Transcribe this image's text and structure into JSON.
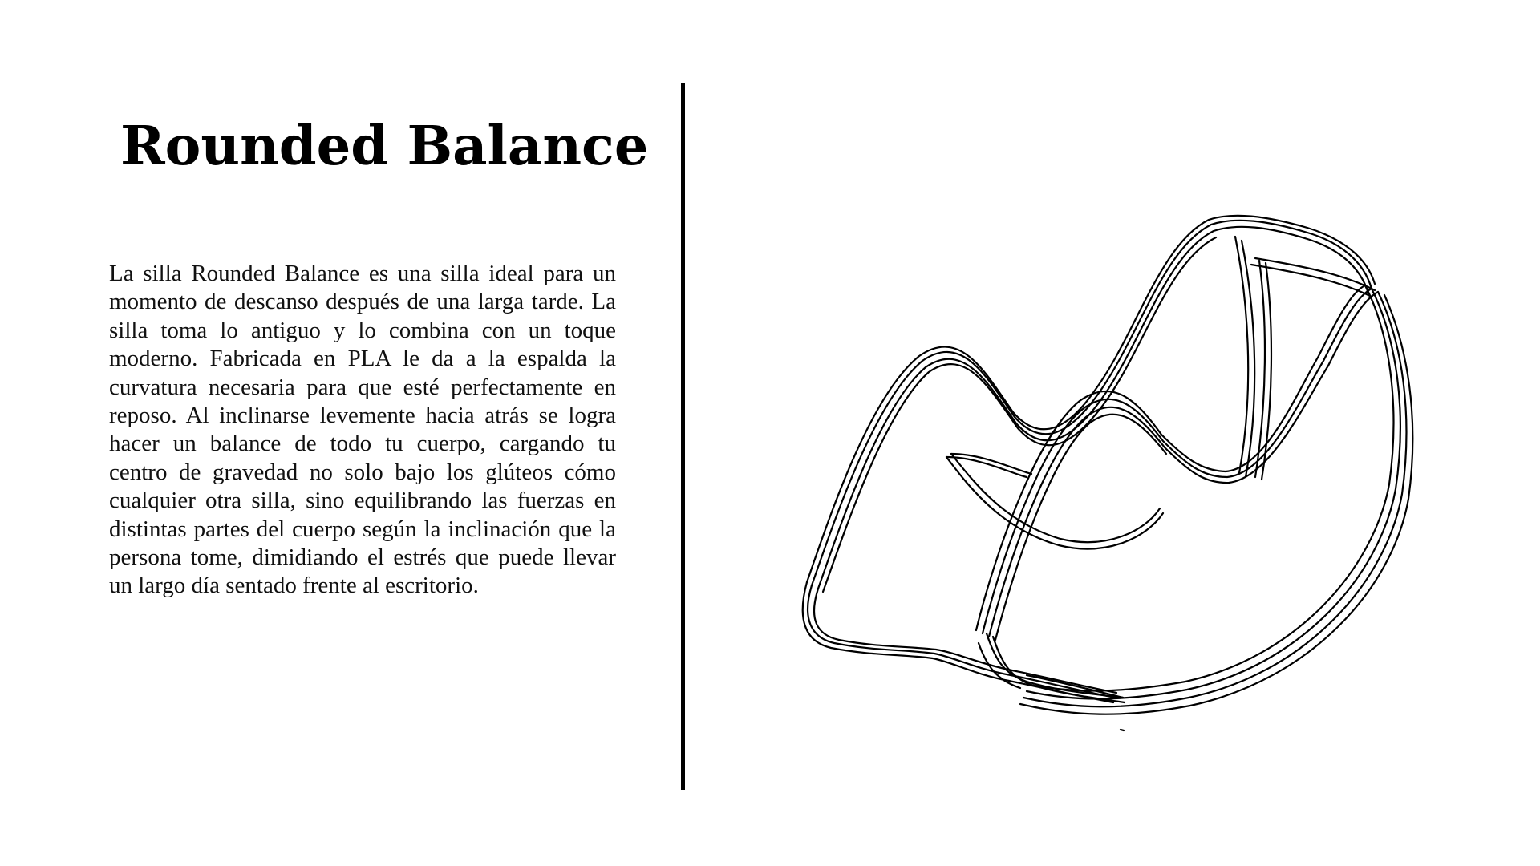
{
  "slide": {
    "title": "Rounded Balance",
    "description": "La silla Rounded Balance es una silla ideal para un momento de descanso después de una larga tarde. La silla toma lo antiguo y lo combina con un toque moderno. Fabricada en PLA le da a la espalda la curvatura necesaria para que esté perfectamente en reposo. Al inclinarse levemente hacia atrás se logra hacer un balance de todo tu cuerpo, cargando tu centro de gravedad no solo bajo los glúteos cómo cualquier otra silla, sino equilibrando las fuerzas en distintas partes del cuerpo según la inclinación que la persona tome, dimidiando el estrés que puede llevar un largo día sentado frente al escritorio."
  },
  "colors": {
    "background": "#ffffff",
    "text": "#000000",
    "divider": "#000000"
  },
  "illustration": {
    "icon": "rocking-chair-line-drawing"
  }
}
